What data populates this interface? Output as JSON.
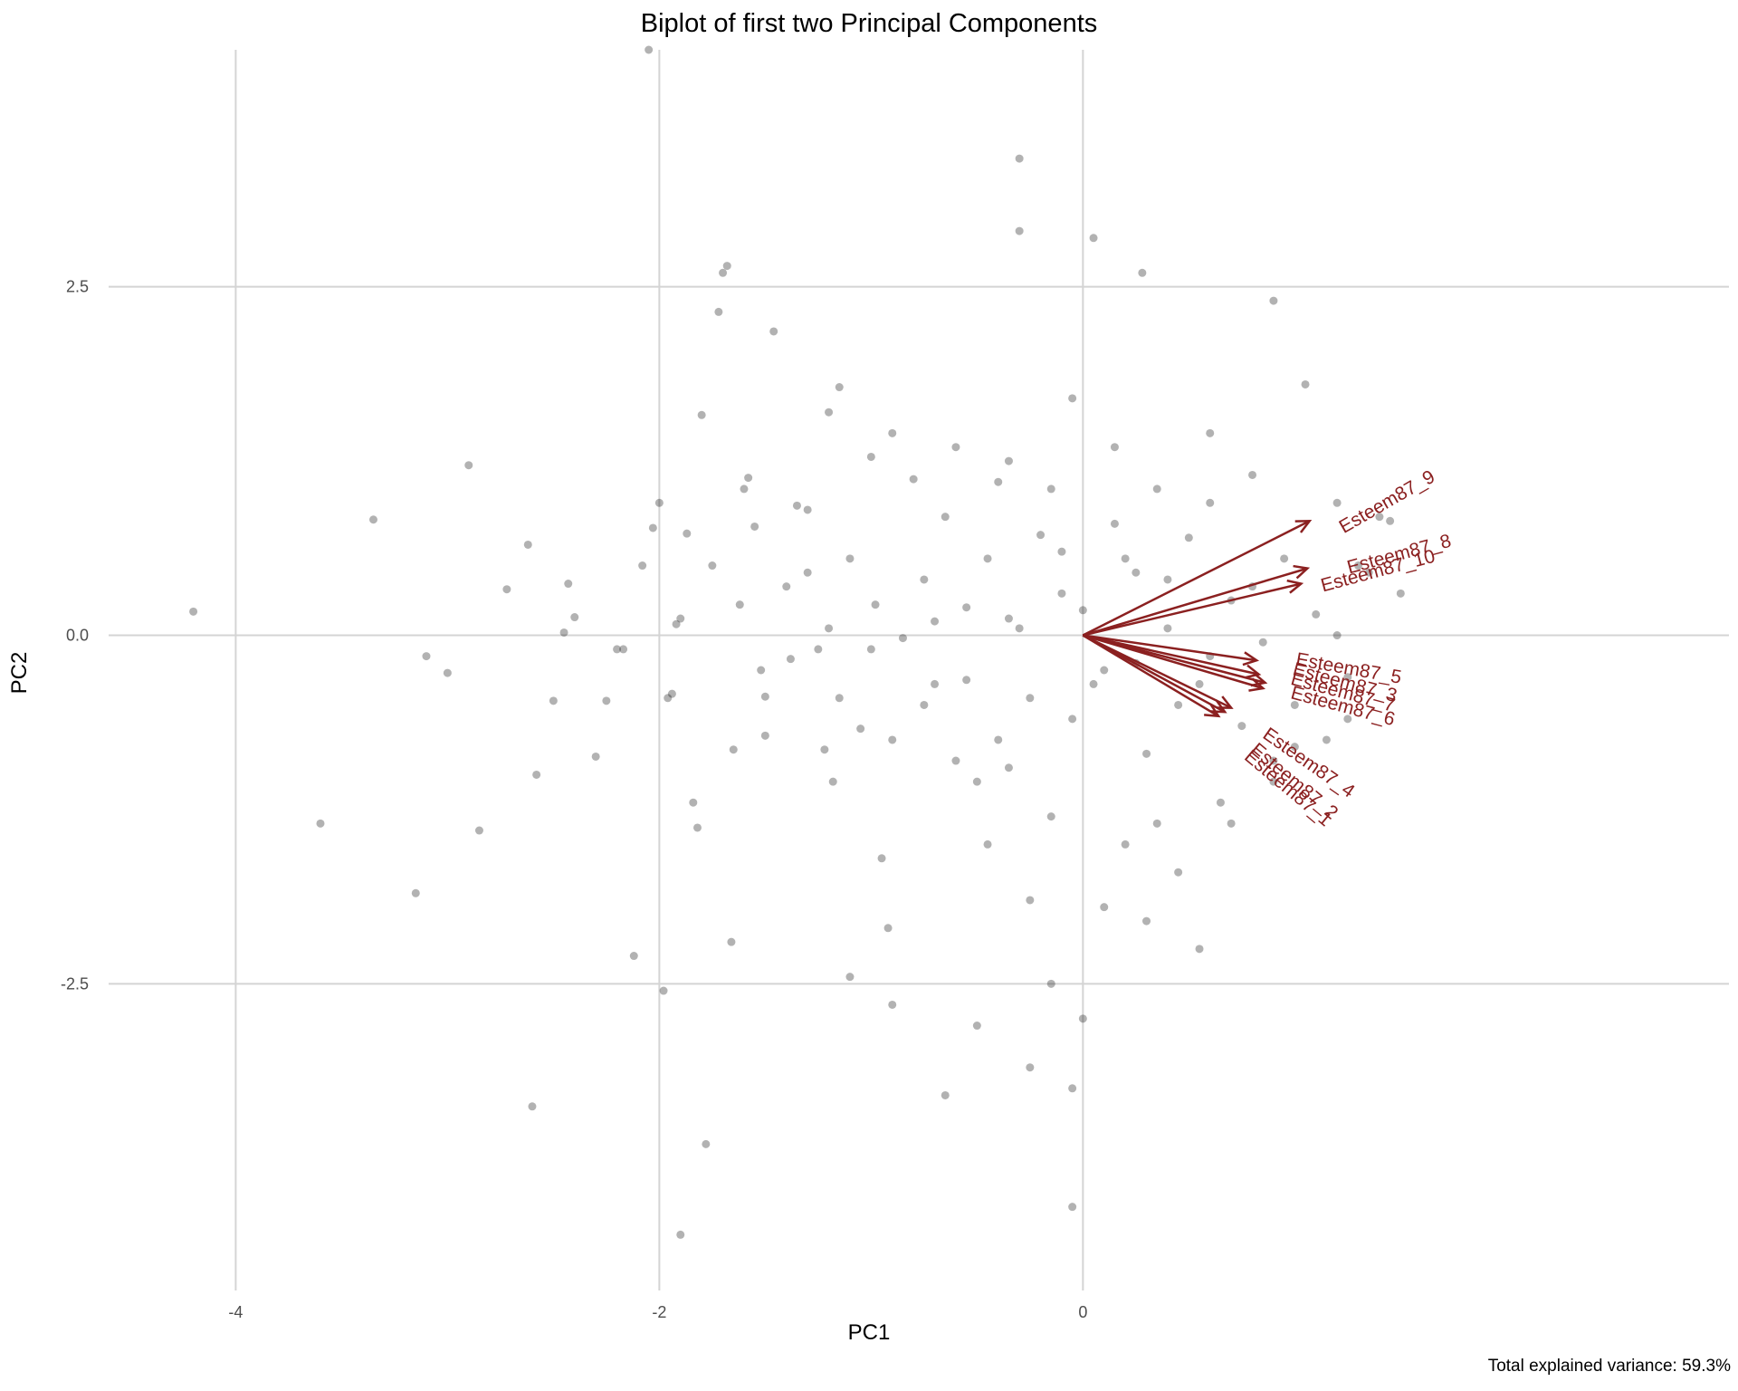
{
  "chart_data": {
    "type": "scatter",
    "title": "Biplot of first two Principal Components",
    "xlabel": "PC1",
    "ylabel": "PC2",
    "caption": "Total explained variance: 59.3%",
    "xlim": [
      -4.6,
      3.05
    ],
    "ylim": [
      -4.7,
      4.2
    ],
    "x_ticks": [
      -4,
      -2,
      0
    ],
    "x_tick_labels": [
      "-4",
      "-2",
      "0"
    ],
    "y_ticks": [
      2.5,
      0,
      -2.5
    ],
    "y_tick_labels": [
      "2.5",
      "0.0",
      "-2.5"
    ],
    "grid": true,
    "legend": "none",
    "point_color": "#000000",
    "arrow_color": "#8b2020",
    "points": [
      [
        -4.2,
        0.17
      ],
      [
        -3.35,
        0.83
      ],
      [
        -3.6,
        -1.35
      ],
      [
        -3.15,
        -1.85
      ],
      [
        -3.1,
        -0.15
      ],
      [
        -3.0,
        -0.27
      ],
      [
        -2.9,
        1.22
      ],
      [
        -2.85,
        -1.4
      ],
      [
        -2.72,
        0.33
      ],
      [
        -2.62,
        0.65
      ],
      [
        -2.6,
        -3.38
      ],
      [
        -2.58,
        -1.0
      ],
      [
        -2.5,
        -0.47
      ],
      [
        -2.45,
        0.02
      ],
      [
        -2.43,
        0.37
      ],
      [
        -2.4,
        0.13
      ],
      [
        -2.3,
        -0.87
      ],
      [
        -2.25,
        -0.47
      ],
      [
        -2.2,
        -0.1
      ],
      [
        -2.17,
        -0.1
      ],
      [
        -2.12,
        -2.3
      ],
      [
        -2.08,
        0.5
      ],
      [
        -2.03,
        0.77
      ],
      [
        -2.0,
        0.95
      ],
      [
        -1.98,
        -2.55
      ],
      [
        -1.96,
        -0.45
      ],
      [
        -1.94,
        -0.42
      ],
      [
        -1.92,
        0.08
      ],
      [
        -1.9,
        0.12
      ],
      [
        -1.87,
        0.73
      ],
      [
        -1.84,
        -1.2
      ],
      [
        -1.82,
        -1.38
      ],
      [
        -1.8,
        1.58
      ],
      [
        -1.78,
        -3.65
      ],
      [
        -1.72,
        2.32
      ],
      [
        -1.7,
        2.6
      ],
      [
        -1.68,
        2.65
      ],
      [
        -1.66,
        -2.2
      ],
      [
        -1.62,
        0.22
      ],
      [
        -1.6,
        1.05
      ],
      [
        -1.58,
        1.13
      ],
      [
        -1.55,
        0.78
      ],
      [
        -1.52,
        -0.25
      ],
      [
        -1.5,
        -0.44
      ],
      [
        -1.46,
        2.18
      ],
      [
        -1.4,
        0.35
      ],
      [
        -1.38,
        -0.17
      ],
      [
        -1.35,
        0.93
      ],
      [
        -1.3,
        0.45
      ],
      [
        -1.25,
        -0.1
      ],
      [
        -1.22,
        -0.82
      ],
      [
        -1.2,
        1.6
      ],
      [
        -1.18,
        -1.05
      ],
      [
        -1.15,
        1.78
      ],
      [
        -1.1,
        0.55
      ],
      [
        -1.05,
        -0.67
      ],
      [
        -1.0,
        1.28
      ],
      [
        -0.98,
        0.22
      ],
      [
        -0.95,
        -1.6
      ],
      [
        -0.92,
        -2.1
      ],
      [
        -0.9,
        1.45
      ],
      [
        -0.85,
        -0.02
      ],
      [
        -0.8,
        1.12
      ],
      [
        -0.75,
        0.4
      ],
      [
        -0.7,
        -0.35
      ],
      [
        -0.65,
        0.85
      ],
      [
        -0.6,
        -0.9
      ],
      [
        -0.55,
        0.2
      ],
      [
        -0.5,
        -1.05
      ],
      [
        -0.45,
        0.55
      ],
      [
        -0.4,
        -0.75
      ],
      [
        -0.35,
        1.25
      ],
      [
        -0.3,
        0.05
      ],
      [
        -0.25,
        -0.45
      ],
      [
        -0.2,
        0.72
      ],
      [
        -0.15,
        -1.3
      ],
      [
        -0.1,
        0.3
      ],
      [
        -0.05,
        -0.6
      ],
      [
        0.0,
        0.18
      ],
      [
        0.05,
        2.85
      ],
      [
        0.1,
        -0.25
      ],
      [
        0.15,
        1.35
      ],
      [
        0.2,
        -1.5
      ],
      [
        0.25,
        0.45
      ],
      [
        0.3,
        -0.85
      ],
      [
        0.35,
        1.05
      ],
      [
        0.4,
        0.05
      ],
      [
        0.45,
        -1.7
      ],
      [
        0.5,
        0.7
      ],
      [
        0.55,
        -0.35
      ],
      [
        0.6,
        1.45
      ],
      [
        0.65,
        -1.2
      ],
      [
        0.7,
        0.25
      ],
      [
        0.75,
        -0.65
      ],
      [
        0.8,
        1.15
      ],
      [
        0.85,
        -0.05
      ],
      [
        0.9,
        -1.05
      ],
      [
        0.95,
        0.55
      ],
      [
        1.0,
        -0.5
      ],
      [
        1.05,
        1.8
      ],
      [
        1.1,
        0.15
      ],
      [
        1.15,
        -0.75
      ],
      [
        1.2,
        0.95
      ],
      [
        1.25,
        -0.3
      ],
      [
        1.3,
        0.5
      ],
      [
        1.35,
        0.45
      ],
      [
        1.4,
        0.85
      ],
      [
        1.45,
        0.82
      ],
      [
        1.5,
        0.3
      ],
      [
        -0.3,
        3.42
      ],
      [
        -0.05,
        -4.1
      ],
      [
        -0.65,
        -3.3
      ],
      [
        0.9,
        2.4
      ],
      [
        0.28,
        2.6
      ],
      [
        -0.25,
        -3.1
      ],
      [
        -0.05,
        -3.25
      ],
      [
        0.0,
        -2.75
      ],
      [
        -2.05,
        4.2
      ],
      [
        -1.9,
        -4.3
      ],
      [
        -0.3,
        2.9
      ],
      [
        -1.1,
        -2.45
      ],
      [
        -0.9,
        -2.65
      ],
      [
        -0.5,
        -2.8
      ],
      [
        -0.15,
        -2.5
      ],
      [
        0.3,
        -2.05
      ],
      [
        0.55,
        -2.25
      ],
      [
        0.7,
        -1.35
      ],
      [
        0.9,
        -0.9
      ],
      [
        1.0,
        -0.8
      ],
      [
        1.2,
        0.0
      ],
      [
        1.25,
        -0.6
      ],
      [
        0.6,
        0.95
      ],
      [
        0.4,
        0.4
      ],
      [
        0.2,
        0.55
      ],
      [
        -0.1,
        0.6
      ],
      [
        -0.35,
        0.12
      ],
      [
        -0.55,
        -0.32
      ],
      [
        -0.75,
        -0.5
      ],
      [
        -1.0,
        -0.1
      ],
      [
        -1.3,
        0.9
      ],
      [
        -1.5,
        -0.72
      ],
      [
        -1.65,
        -0.82
      ],
      [
        -1.75,
        0.5
      ],
      [
        -0.45,
        -1.5
      ],
      [
        -0.25,
        -1.9
      ],
      [
        0.1,
        -1.95
      ],
      [
        0.35,
        -1.35
      ],
      [
        0.6,
        -0.15
      ],
      [
        0.8,
        0.35
      ],
      [
        -0.7,
        0.1
      ],
      [
        -1.2,
        0.05
      ],
      [
        -0.6,
        1.35
      ],
      [
        -0.4,
        1.1
      ],
      [
        -0.15,
        1.05
      ],
      [
        0.15,
        0.8
      ],
      [
        -0.9,
        -0.75
      ],
      [
        -1.15,
        -0.45
      ],
      [
        -0.35,
        -0.95
      ],
      [
        0.45,
        -0.5
      ],
      [
        0.25,
        -0.2
      ],
      [
        0.05,
        -0.35
      ],
      [
        -0.05,
        1.7
      ]
    ],
    "arrows": [
      {
        "name": "Esteem87_9",
        "x": 1.07,
        "y": 0.82
      },
      {
        "name": "Esteem87_8",
        "x": 1.06,
        "y": 0.48
      },
      {
        "name": "Esteem87_10",
        "x": 1.03,
        "y": 0.37
      },
      {
        "name": "Esteem87_5",
        "x": 0.82,
        "y": -0.18
      },
      {
        "name": "Esteem87_3",
        "x": 0.83,
        "y": -0.28
      },
      {
        "name": "Esteem87_7",
        "x": 0.86,
        "y": -0.34
      },
      {
        "name": "Esteem87_6",
        "x": 0.85,
        "y": -0.38
      },
      {
        "name": "Esteem87_4",
        "x": 0.7,
        "y": -0.52
      },
      {
        "name": "Esteem87_2",
        "x": 0.67,
        "y": -0.55
      },
      {
        "name": "Esteem87_1",
        "x": 0.64,
        "y": -0.58
      }
    ],
    "arrow_labels": [
      {
        "name": "Esteem87_9",
        "x": 1.45,
        "y": 0.92,
        "angle": -30
      },
      {
        "name": "Esteem87_8",
        "x": 1.5,
        "y": 0.54,
        "angle": -15
      },
      {
        "name": "Esteem87_10",
        "x": 1.4,
        "y": 0.42,
        "angle": -15
      },
      {
        "name": "Esteem87_5",
        "x": 1.25,
        "y": -0.28,
        "angle": 10
      },
      {
        "name": "Esteem87_3",
        "x": 1.23,
        "y": -0.38,
        "angle": 15
      },
      {
        "name": "Esteem87_7",
        "x": 1.22,
        "y": -0.45,
        "angle": 15
      },
      {
        "name": "Esteem87_6",
        "x": 1.22,
        "y": -0.55,
        "angle": 15
      },
      {
        "name": "Esteem87_4",
        "x": 1.05,
        "y": -0.95,
        "angle": 35
      },
      {
        "name": "Esteem87_2",
        "x": 0.98,
        "y": -1.08,
        "angle": 40
      },
      {
        "name": "Esteem87_1",
        "x": 0.95,
        "y": -1.13,
        "angle": 40
      }
    ]
  }
}
